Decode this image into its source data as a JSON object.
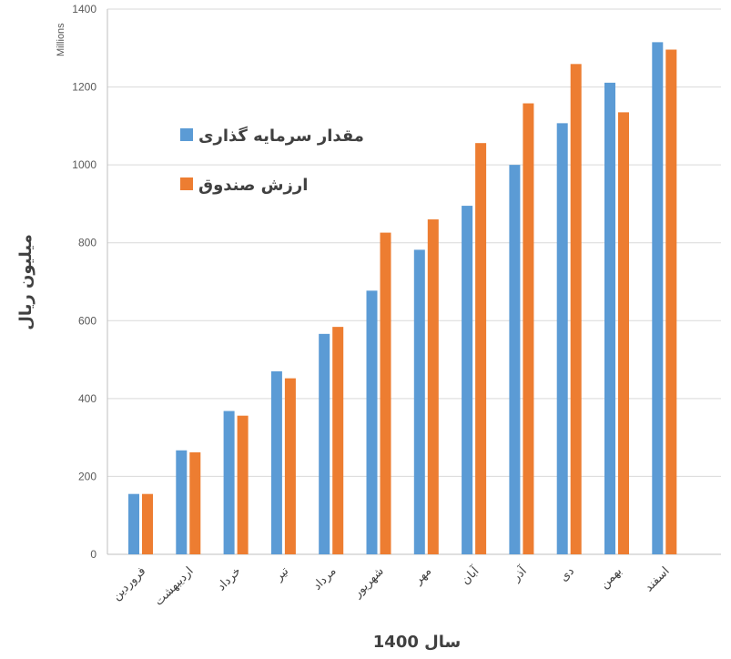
{
  "chart_data": {
    "type": "bar",
    "categories": [
      "فروردین",
      "اردیبهشت",
      "خرداد",
      "تیر",
      "مرداد",
      "شهریور",
      "مهر",
      "آبان",
      "آذر",
      "دی",
      "بهمن",
      "اسفند"
    ],
    "series": [
      {
        "name": "مقدار سرمایه گذاری",
        "color": "#5B9BD5",
        "values": [
          155,
          267,
          368,
          470,
          566,
          677,
          782,
          895,
          1000,
          1107,
          1211,
          1315
        ]
      },
      {
        "name": "ارزش صندوق",
        "color": "#ED7D31",
        "values": [
          155,
          262,
          356,
          452,
          584,
          826,
          860,
          1056,
          1158,
          1259,
          1135,
          1296
        ]
      }
    ],
    "xlabel": "سال 1400",
    "ylabel": "میلیون ریال",
    "y_units": "Millions",
    "ylim": [
      0,
      1400
    ],
    "yticks": [
      "0",
      "200",
      "400",
      "600",
      "800",
      "1000",
      "1200",
      "1400"
    ],
    "ytick_values": [
      0,
      200,
      400,
      600,
      800,
      1000,
      1200,
      1400
    ],
    "grid": true,
    "legend_position": "top-left"
  }
}
